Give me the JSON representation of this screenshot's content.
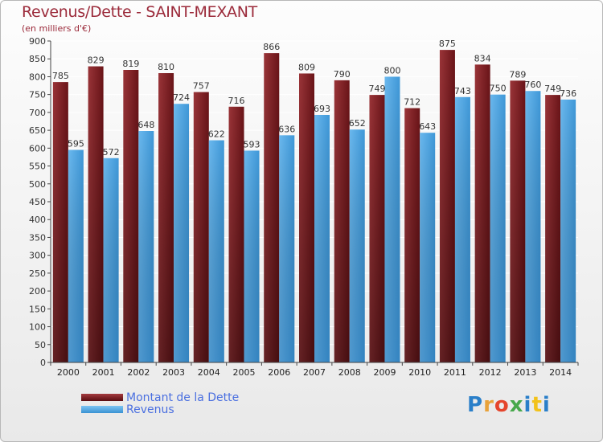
{
  "chart_data": {
    "type": "bar",
    "title": "Revenus/Dette - SAINT-MEXANT",
    "subtitle": "(en milliers d'€)",
    "categories": [
      "2000",
      "2001",
      "2002",
      "2003",
      "2004",
      "2005",
      "2006",
      "2007",
      "2008",
      "2009",
      "2010",
      "2011",
      "2012",
      "2013",
      "2014"
    ],
    "series": [
      {
        "name": "Montant de la Dette",
        "color": "#7a1e22",
        "values": [
          785,
          829,
          819,
          810,
          757,
          716,
          866,
          809,
          790,
          749,
          712,
          875,
          834,
          789,
          749
        ]
      },
      {
        "name": "Revenus",
        "color": "#4ea8e4",
        "values": [
          595,
          572,
          648,
          724,
          622,
          593,
          636,
          693,
          652,
          800,
          643,
          743,
          750,
          760,
          736
        ]
      }
    ],
    "ylim": [
      0,
      900
    ],
    "yticks": [
      0,
      50,
      100,
      150,
      200,
      250,
      300,
      350,
      400,
      450,
      500,
      550,
      600,
      650,
      700,
      750,
      800,
      850,
      900
    ],
    "grid": true,
    "legend_position": "bottom-left"
  },
  "brand": {
    "logo_text": "Proxiti",
    "logo_colors": [
      "#2a7fc9",
      "#e8a23a",
      "#e5452c",
      "#47a84b",
      "#2a7fc9",
      "#f2c21b",
      "#2a7fc9"
    ]
  }
}
